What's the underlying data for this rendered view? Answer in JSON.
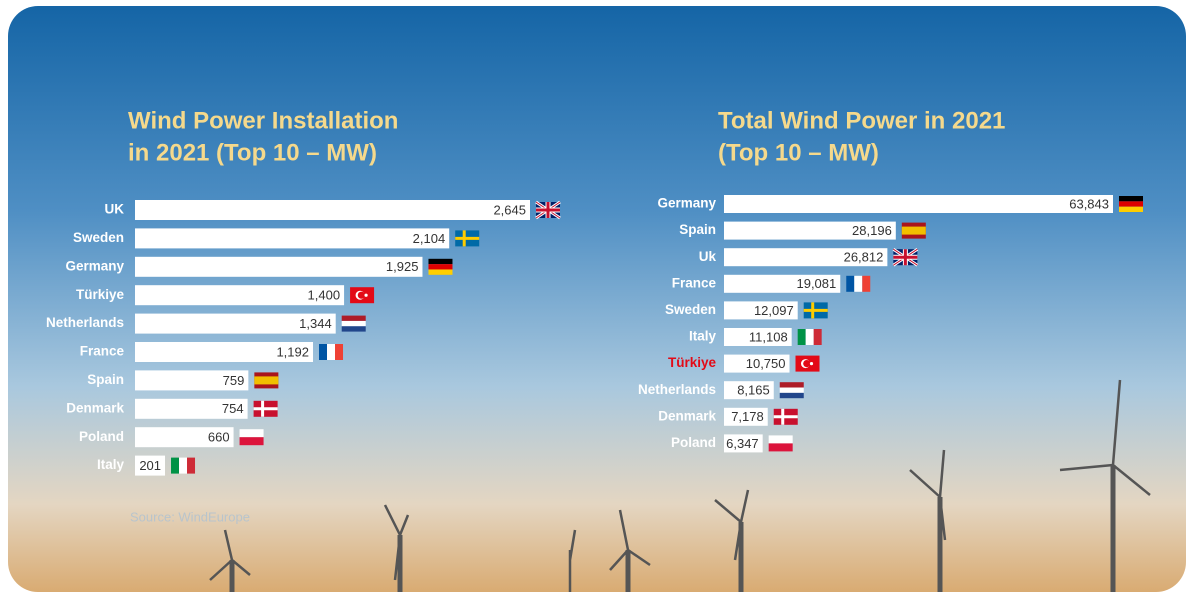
{
  "chart_data": [
    {
      "type": "bar",
      "orientation": "horizontal",
      "title": [
        "Wind Power Installation",
        "in 2021 (Top 10 – MW)"
      ],
      "categories": [
        "UK",
        "Sweden",
        "Germany",
        "Türkiye",
        "Netherlands",
        "France",
        "Spain",
        "Denmark",
        "Poland",
        "Italy"
      ],
      "values": [
        2645,
        2104,
        1925,
        1400,
        1344,
        1192,
        759,
        754,
        660,
        201
      ],
      "value_labels": [
        "2,645",
        "2,104",
        "1,925",
        "1,400",
        "1,344",
        "1,192",
        "759",
        "754",
        "660",
        "201"
      ],
      "color": "#ffffff",
      "category_colors": [
        "#ffffff",
        "#ffffff",
        "#ffffff",
        "#ffffff",
        "#ffffff",
        "#ffffff",
        "#ffffff",
        "#ffffff",
        "#ffffff",
        "#ffffff"
      ],
      "source": "Source: WindEurope"
    },
    {
      "type": "bar",
      "orientation": "horizontal",
      "title": [
        "Total Wind Power in 2021",
        "(Top 10 – MW)"
      ],
      "categories": [
        "Germany",
        "Spain",
        "Uk",
        "France",
        "Sweden",
        "Italy",
        "Türkiye",
        "Netherlands",
        "Denmark",
        "Poland"
      ],
      "values": [
        63843,
        28196,
        26812,
        19081,
        12097,
        11108,
        10750,
        8165,
        7178,
        6347
      ],
      "value_labels": [
        "63,843",
        "28,196",
        "26,812",
        "19,081",
        "12,097",
        "11,108",
        "10,750",
        "8,165",
        "7,178",
        "6,347"
      ],
      "color": "#ffffff",
      "category_colors": [
        "#ffffff",
        "#ffffff",
        "#ffffff",
        "#ffffff",
        "#ffffff",
        "#ffffff",
        "#e30a17",
        "#ffffff",
        "#ffffff",
        "#ffffff"
      ]
    }
  ]
}
